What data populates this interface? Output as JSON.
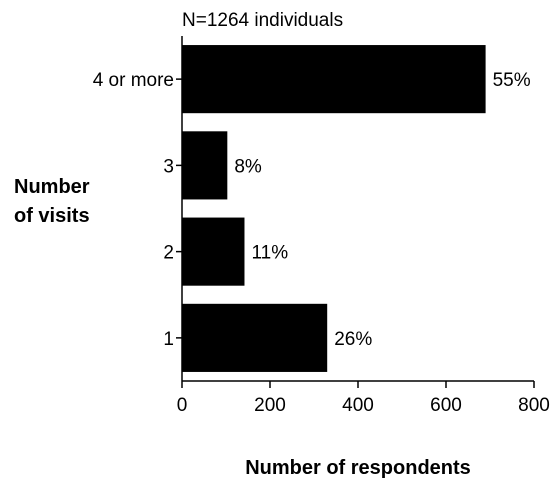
{
  "chart_data": {
    "type": "bar",
    "orientation": "horizontal",
    "annotation": "N=1264 individuals",
    "ylabel_line1": "Number",
    "ylabel_line2": "of visits",
    "xlabel": "Number of respondents",
    "categories": [
      "4 or more",
      "3",
      "2",
      "1"
    ],
    "values": [
      690,
      103,
      142,
      330
    ],
    "data_labels": [
      "55%",
      "8%",
      "11%",
      "26%"
    ],
    "xlim": [
      0,
      800
    ],
    "xticks": [
      "0",
      "200",
      "400",
      "600",
      "800"
    ],
    "bar_color": "#000000",
    "grid": false,
    "legend": "none"
  }
}
